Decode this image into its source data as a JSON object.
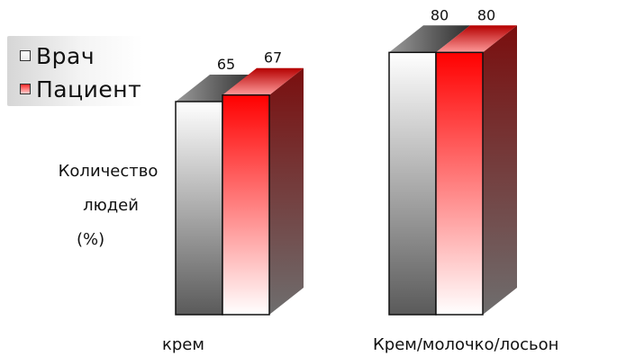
{
  "chart_data": {
    "type": "bar",
    "categories": [
      "крем",
      "Крем/молочко/лосьон"
    ],
    "series": [
      {
        "name": "Врач",
        "values": [
          65,
          80
        ],
        "color": "#ffffff"
      },
      {
        "name": "Пациент",
        "values": [
          67,
          80
        ],
        "color": "#ff0000"
      }
    ],
    "ylabel_lines": [
      "Количество",
      "людей",
      "(%)"
    ],
    "xlabel": "",
    "title": "",
    "ylim": [
      0,
      100
    ],
    "legend_position": "top-left",
    "style": "3d-gradient"
  }
}
